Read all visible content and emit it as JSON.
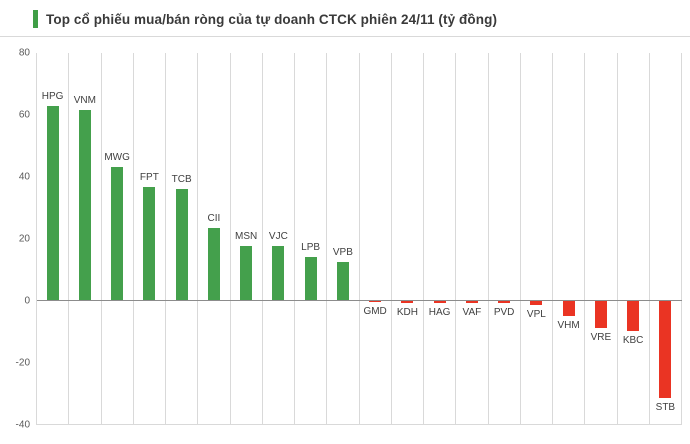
{
  "title": "Top cổ phiếu mua/bán ròng của tự doanh CTCK phiên 24/11 (tỷ đồng)",
  "colors": {
    "positive": "#44a04c",
    "negative": "#ea3423",
    "accent": "#3f9e46",
    "gridline": "#d9d9d9",
    "zero_line": "#8c8c8c"
  },
  "chart_data": {
    "type": "bar",
    "title": "Top cổ phiếu mua/bán ròng của tự doanh CTCK phiên 24/11 (tỷ đồng)",
    "categories": [
      "HPG",
      "VNM",
      "MWG",
      "FPT",
      "TCB",
      "CII",
      "MSN",
      "VJC",
      "LPB",
      "VPB",
      "GMD",
      "KDH",
      "HAG",
      "VAF",
      "PVD",
      "VPL",
      "VHM",
      "VRE",
      "KBC",
      "STB"
    ],
    "values": [
      63,
      61.5,
      43,
      36.5,
      36,
      23.5,
      17.5,
      17.5,
      14,
      12.5,
      -0.5,
      -1,
      -1,
      -1,
      -1,
      -1.5,
      -5,
      -9,
      -10,
      -31.5
    ],
    "xlabel": "",
    "ylabel": "",
    "ylim": [
      -40,
      80
    ],
    "yticks": [
      80,
      60,
      40,
      20,
      0,
      -20,
      -40
    ],
    "grid": "vertical",
    "legend": "none"
  }
}
